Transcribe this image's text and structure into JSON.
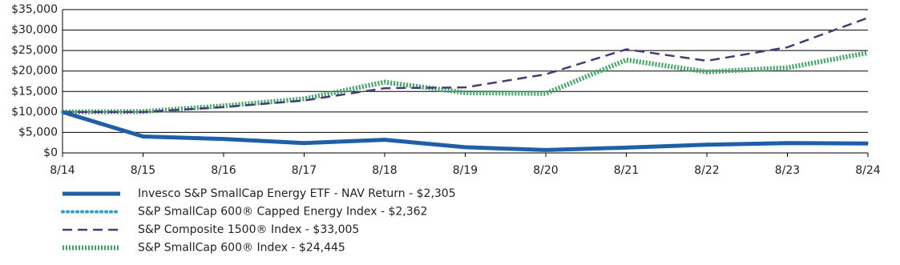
{
  "chart_data": {
    "type": "line",
    "categories": [
      "8/14",
      "8/15",
      "8/16",
      "8/17",
      "8/18",
      "8/19",
      "8/20",
      "8/21",
      "8/22",
      "8/23",
      "8/24"
    ],
    "ylim": [
      0,
      35000
    ],
    "yticks": [
      {
        "value": 0,
        "label": "$0"
      },
      {
        "value": 5000,
        "label": "$5,000"
      },
      {
        "value": 10000,
        "label": "$10,000"
      },
      {
        "value": 15000,
        "label": "$15,000"
      },
      {
        "value": 20000,
        "label": "$20,000"
      },
      {
        "value": 25000,
        "label": "$25,000"
      },
      {
        "value": 30000,
        "label": "$30,000"
      },
      {
        "value": 35000,
        "label": "$35,000"
      }
    ],
    "grid": true,
    "series": [
      {
        "name": "Invesco S&P SmallCap Energy ETF - NAV Return - $2,305",
        "color": "#1f5fa8",
        "style": "solid",
        "values": [
          10000,
          4000,
          3400,
          2400,
          3200,
          1400,
          700,
          1300,
          2000,
          2400,
          2305
        ]
      },
      {
        "name": "S&P SmallCap 600® Capped Energy Index - $2,362",
        "color": "#2a9fd6",
        "style": "dotted",
        "values": [
          10000,
          4100,
          3500,
          2500,
          3300,
          1500,
          750,
          1400,
          2100,
          2500,
          2362
        ]
      },
      {
        "name": "S&P Composite 1500® Index - $33,005",
        "color": "#4b3a7a",
        "style": "dashed",
        "values": [
          10000,
          10000,
          11200,
          12800,
          15800,
          16000,
          19200,
          25300,
          22500,
          25800,
          33005
        ]
      },
      {
        "name": "S&P SmallCap 600® Index - $24,445",
        "color": "#3aa860",
        "style": "hatched",
        "values": [
          10000,
          10100,
          11500,
          13200,
          17300,
          14700,
          14500,
          22700,
          19800,
          20800,
          24445
        ]
      }
    ]
  }
}
